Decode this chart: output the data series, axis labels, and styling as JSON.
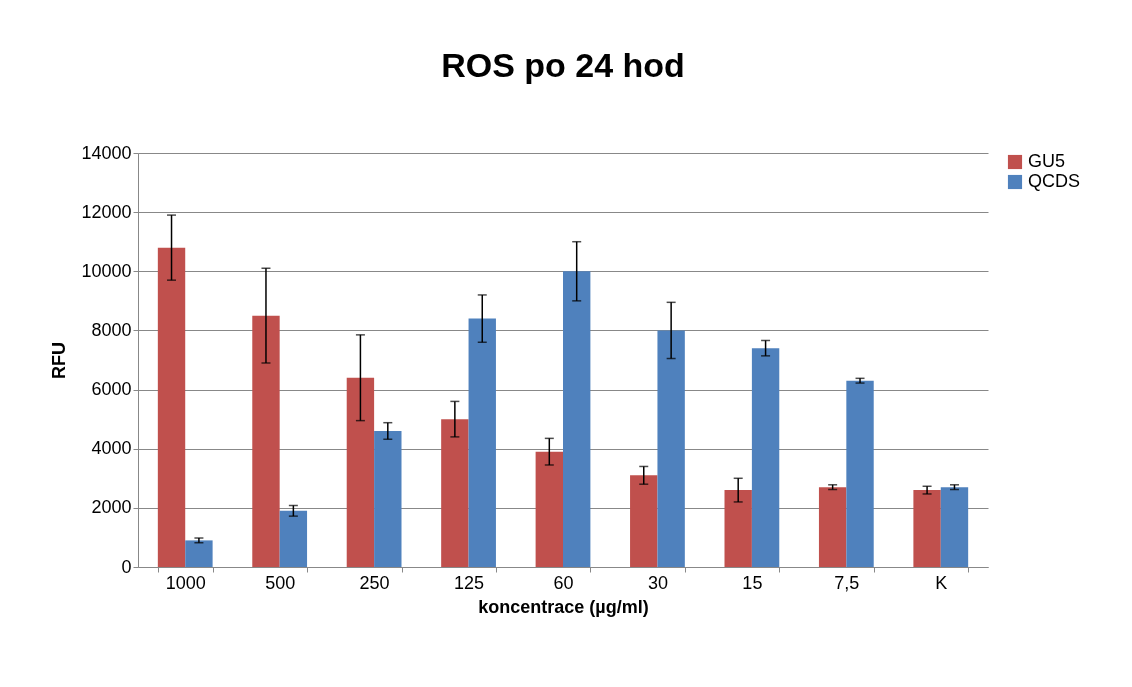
{
  "chart_data": {
    "type": "bar",
    "title": "ROS po 24 hod",
    "xlabel": "koncentrace (µg/ml)",
    "ylabel": "RFU",
    "categories": [
      "1000",
      "500",
      "250",
      "125",
      "60",
      "30",
      "15",
      "7,5",
      "K"
    ],
    "series": [
      {
        "name": "GU5",
        "color": "#c0504d",
        "values": [
          10800,
          8500,
          6400,
          5000,
          3900,
          3100,
          2600,
          2700,
          2600
        ],
        "errors": [
          1100,
          1600,
          1450,
          600,
          450,
          300,
          400,
          80,
          130
        ]
      },
      {
        "name": "QCDS",
        "color": "#4f81bd",
        "values": [
          900,
          1900,
          4600,
          8400,
          10000,
          8000,
          7400,
          6300,
          2700
        ],
        "errors": [
          80,
          180,
          280,
          800,
          1000,
          950,
          260,
          80,
          80
        ]
      }
    ],
    "ylim": [
      0,
      14000
    ],
    "yticks": [
      0,
      2000,
      4000,
      6000,
      8000,
      10000,
      12000,
      14000
    ],
    "grid": "y",
    "legend": "right"
  }
}
